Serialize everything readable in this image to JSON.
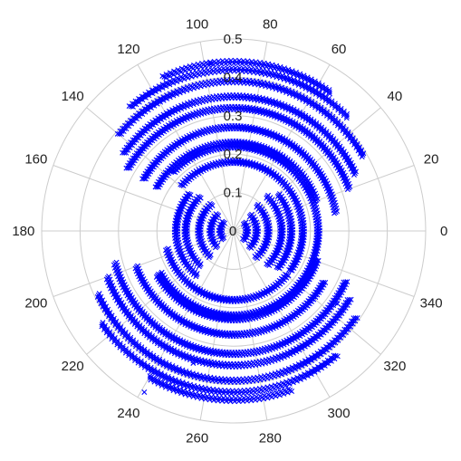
{
  "chart_data": {
    "type": "scatter",
    "projection": "polar",
    "title": "",
    "marker": "x",
    "marker_color": "#0000ff",
    "grid": true,
    "rlim": [
      0,
      0.5
    ],
    "r_ticks": [
      0,
      0.1,
      0.2,
      0.3,
      0.4,
      0.5
    ],
    "r_tick_labels": [
      "0",
      "0.1",
      "0.2",
      "0.3",
      "0.4",
      "0.5"
    ],
    "theta_ticks_deg": [
      0,
      20,
      40,
      60,
      80,
      100,
      120,
      140,
      160,
      180,
      200,
      220,
      240,
      260,
      280,
      300,
      320,
      340
    ],
    "theta_tick_labels": [
      "0",
      "20",
      "40",
      "60",
      "80",
      "100",
      "120",
      "140",
      "160",
      "180",
      "200",
      "220",
      "240",
      "260",
      "280",
      "300",
      "320",
      "340"
    ],
    "theta_direction": "counterclockwise",
    "theta_zero_location": "right",
    "series": [
      {
        "values_description_arcs": [
          {
            "r": 0.035,
            "theta_ranges": [
              [
                -40,
                40
              ],
              [
                140,
                220
              ]
            ]
          },
          {
            "r": 0.06,
            "theta_ranges": [
              [
                -45,
                45
              ],
              [
                135,
                225
              ]
            ]
          },
          {
            "r": 0.09,
            "theta_ranges": [
              [
                -50,
                50
              ],
              [
                130,
                230
              ]
            ]
          },
          {
            "r": 0.125,
            "theta_ranges": [
              [
                -45,
                45
              ],
              [
                135,
                225
              ]
            ]
          },
          {
            "r": 0.15,
            "theta_ranges": [
              [
                -40,
                40
              ],
              [
                140,
                230
              ]
            ]
          },
          {
            "r": 0.18,
            "theta_ranges": [
              [
                -35,
                140
              ],
              [
                195,
                320
              ]
            ]
          },
          {
            "r": 0.22,
            "theta_ranges": [
              [
                -40,
                135
              ],
              [
                210,
                325
              ]
            ]
          },
          {
            "r": 0.23,
            "theta_ranges": [
              [
                20,
                150
              ],
              [
                210,
                340
              ]
            ]
          },
          {
            "r": 0.27,
            "theta_ranges": [
              [
                10,
                150
              ],
              [
                200,
                330
              ]
            ]
          },
          {
            "r": 0.32,
            "theta_ranges": [
              [
                20,
                150
              ],
              [
                195,
                335
              ]
            ]
          },
          {
            "r": 0.35,
            "theta_ranges": [
              [
                25,
                145
              ],
              [
                200,
                330
              ]
            ]
          },
          {
            "r": 0.39,
            "theta_ranges": [
              [
                30,
                140
              ],
              [
                205,
                325
              ]
            ]
          },
          {
            "r": 0.42,
            "theta_ranges": [
              [
                45,
                130
              ],
              [
                215,
                310
              ]
            ]
          },
          {
            "r": 0.44,
            "theta_ranges": [
              [
                55,
                115
              ],
              [
                240,
                290
              ]
            ]
          }
        ],
        "outliers": [
          {
            "theta": 98,
            "r": 0.44
          },
          {
            "theta": 241,
            "r": 0.48
          },
          {
            "theta": 253,
            "r": 0.36
          },
          {
            "theta": 325,
            "r": 0.33
          }
        ]
      }
    ]
  }
}
